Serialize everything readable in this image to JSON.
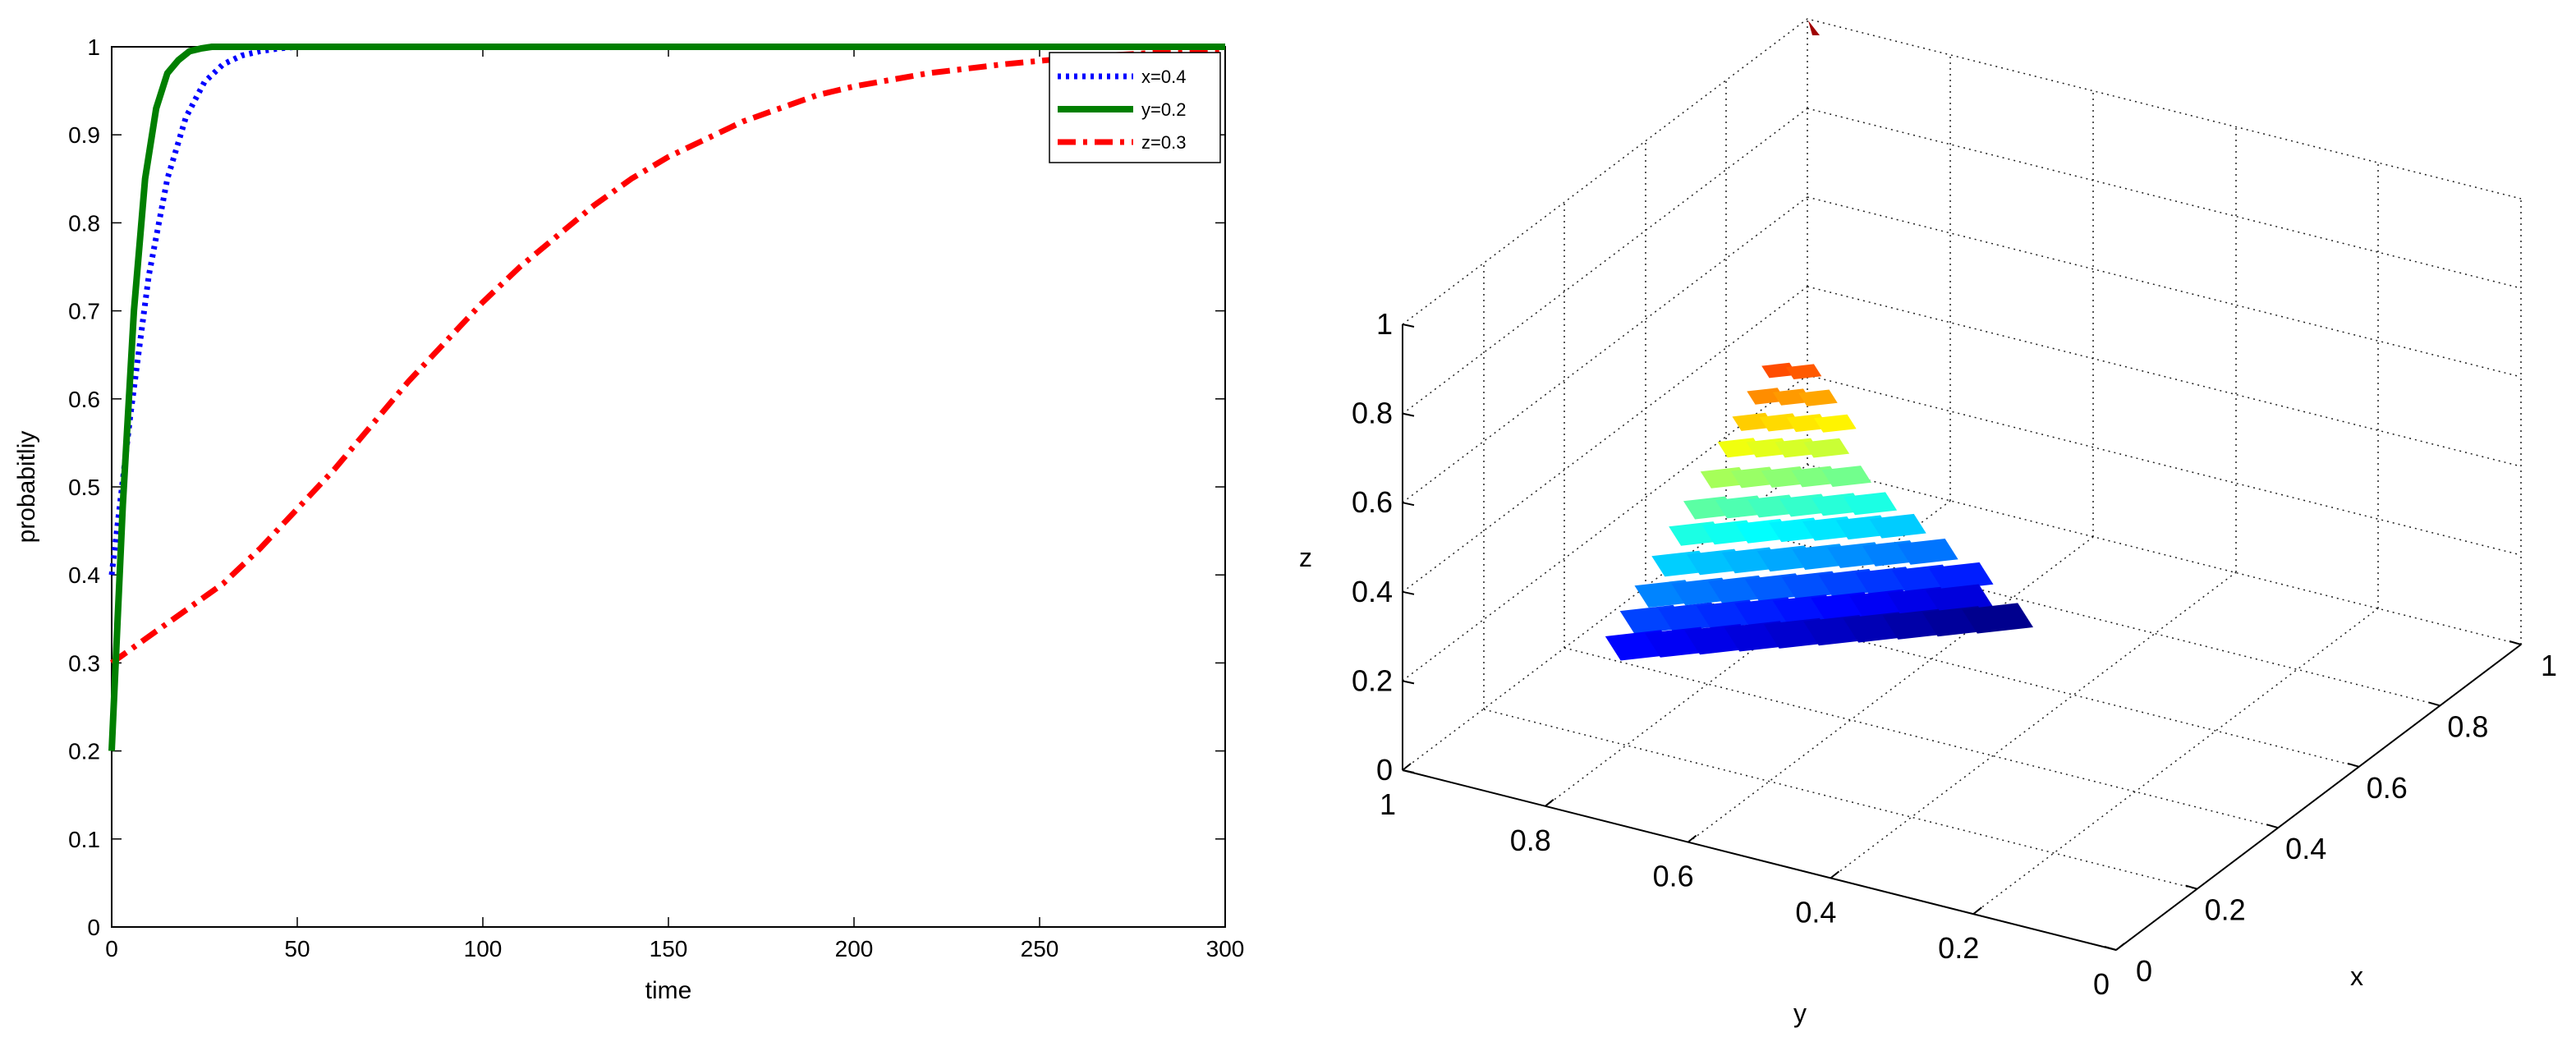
{
  "chart_data": [
    {
      "type": "line",
      "xlabel": "time",
      "ylabel": "probabitliy",
      "xlim": [
        0,
        300
      ],
      "ylim": [
        0,
        1
      ],
      "x_ticks": [
        0,
        50,
        100,
        150,
        200,
        250,
        300
      ],
      "x_tick_labels": [
        "0",
        "50",
        "100",
        "150",
        "200",
        "250",
        "300"
      ],
      "y_ticks": [
        0,
        0.1,
        0.2,
        0.3,
        0.4,
        0.5,
        0.6,
        0.7,
        0.8,
        0.9,
        1
      ],
      "y_tick_labels": [
        "0",
        "0.1",
        "0.2",
        "0.3",
        "0.4",
        "0.5",
        "0.6",
        "0.7",
        "0.8",
        "0.9",
        "1"
      ],
      "grid": false,
      "legend_position": "top-right",
      "series": [
        {
          "name": "x=0.4",
          "color": "#0000ff",
          "style": "dotted",
          "x": [
            0,
            5,
            10,
            15,
            20,
            25,
            30,
            35,
            40,
            45,
            50,
            60,
            80,
            300
          ],
          "y": [
            0.4,
            0.58,
            0.74,
            0.85,
            0.92,
            0.96,
            0.98,
            0.99,
            0.995,
            0.998,
            1.0,
            1.0,
            1.0,
            1.0
          ]
        },
        {
          "name": "y=0.2",
          "color": "#007f00",
          "style": "solid",
          "x": [
            0,
            3,
            6,
            9,
            12,
            15,
            18,
            21,
            24,
            27,
            30,
            40,
            300
          ],
          "y": [
            0.2,
            0.48,
            0.7,
            0.85,
            0.93,
            0.97,
            0.985,
            0.995,
            0.998,
            1.0,
            1.0,
            1.0,
            1.0
          ]
        },
        {
          "name": "z=0.3",
          "color": "#ff0000",
          "style": "dashdot",
          "x": [
            0,
            10,
            20,
            30,
            40,
            50,
            60,
            70,
            80,
            90,
            100,
            110,
            120,
            130,
            140,
            150,
            160,
            170,
            180,
            190,
            200,
            220,
            240,
            260,
            280,
            300
          ],
          "y": [
            0.3,
            0.33,
            0.36,
            0.39,
            0.43,
            0.475,
            0.52,
            0.57,
            0.62,
            0.665,
            0.71,
            0.75,
            0.785,
            0.82,
            0.85,
            0.875,
            0.895,
            0.915,
            0.93,
            0.945,
            0.955,
            0.97,
            0.98,
            0.988,
            0.993,
            0.996
          ]
        }
      ]
    },
    {
      "type": "surface3d",
      "xlabel": "x",
      "ylabel": "y",
      "zlabel": "z",
      "xlim": [
        0,
        1
      ],
      "ylim": [
        0,
        1
      ],
      "zlim": [
        0,
        1
      ],
      "x_tick_labels": [
        "0",
        "0.2",
        "0.4",
        "0.6",
        "0.8",
        "1"
      ],
      "y_tick_labels": [
        "1",
        "0.8",
        "0.6",
        "0.4",
        "0.2",
        "0"
      ],
      "z_tick_labels": [
        "0",
        "0.2",
        "0.4",
        "0.6",
        "0.8",
        "1"
      ],
      "grid": true,
      "colormap": "jet",
      "band_z": [
        0.36,
        0.42,
        0.48,
        0.55,
        0.62,
        0.68,
        0.75,
        0.82,
        0.88,
        0.94,
        1.0
      ]
    }
  ]
}
